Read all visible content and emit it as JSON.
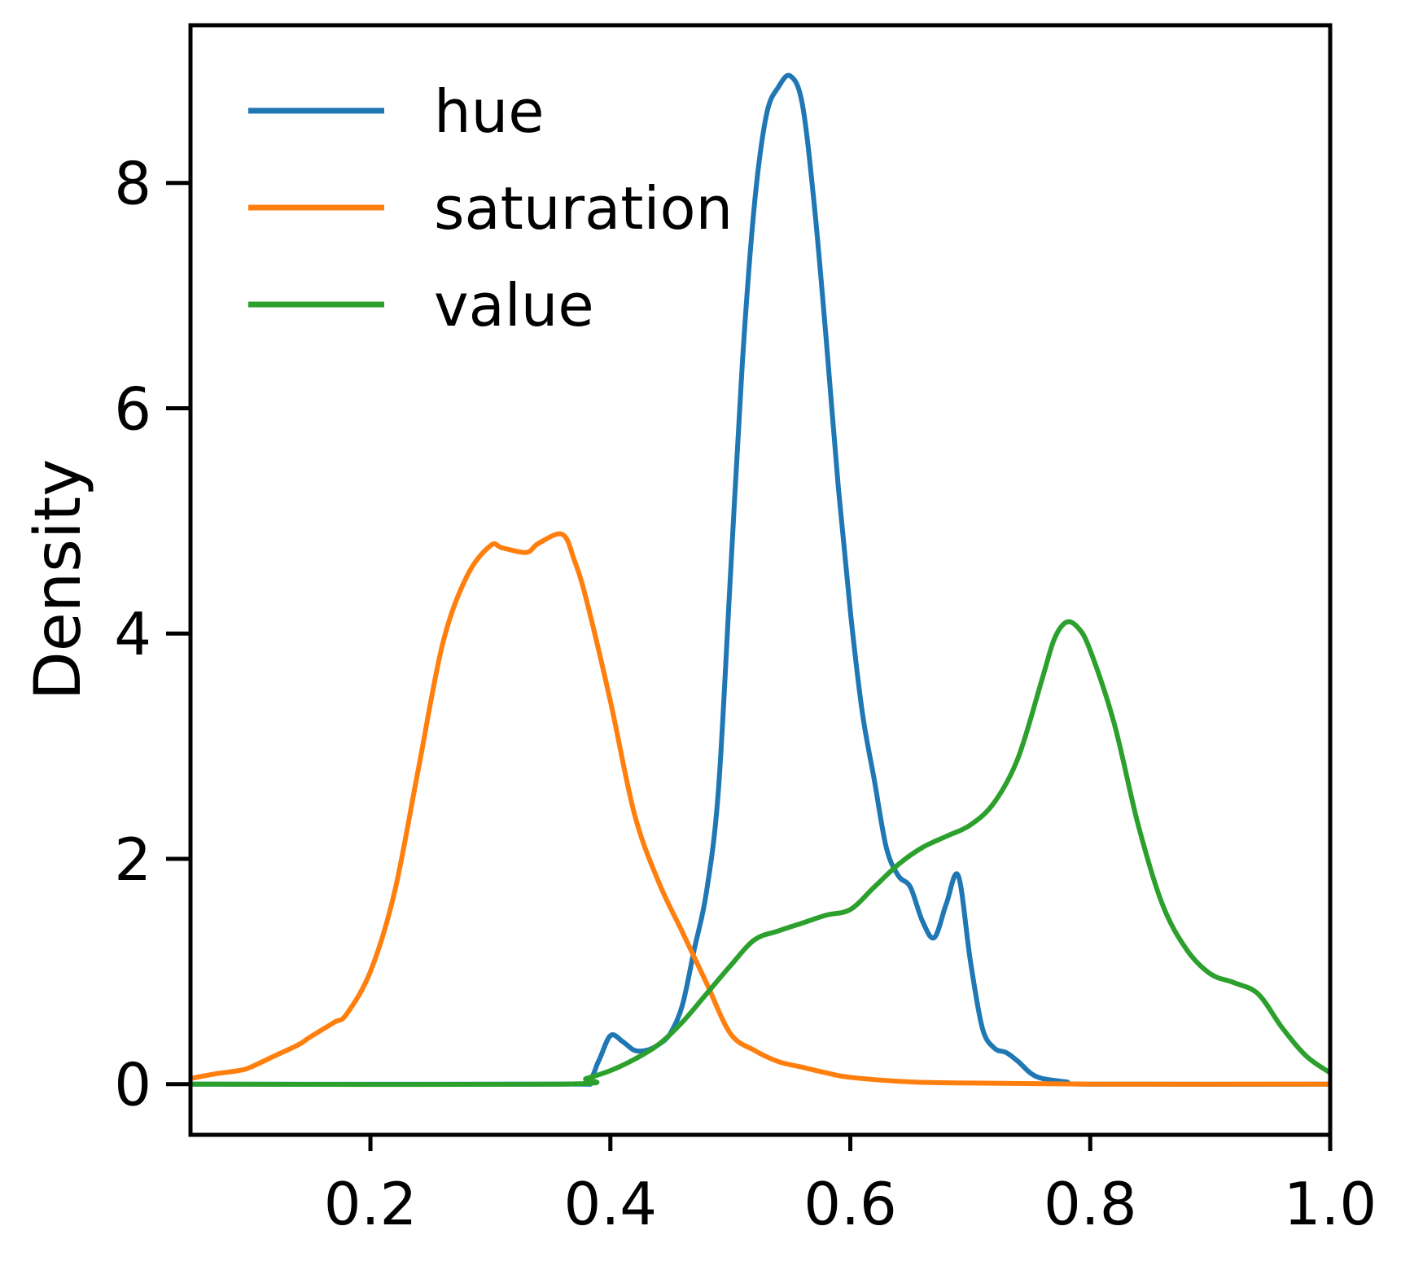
{
  "chart_data": {
    "type": "line",
    "title": "",
    "xlabel": "",
    "ylabel": "Density",
    "xlim": [
      0.05,
      1.0
    ],
    "ylim": [
      -0.45,
      9.4
    ],
    "xticks": [
      0.2,
      0.4,
      0.6,
      0.8,
      1.0
    ],
    "xtick_labels": [
      "0.2",
      "0.4",
      "0.6",
      "0.8",
      "1.0"
    ],
    "yticks": [
      0,
      2,
      4,
      6,
      8
    ],
    "ytick_labels": [
      "0",
      "2",
      "4",
      "6",
      "8"
    ],
    "grid": false,
    "legend_position": "top-left",
    "series": [
      {
        "name": "hue",
        "color": "#1f77b4",
        "points": [
          [
            0.05,
            0
          ],
          [
            0.35,
            0
          ],
          [
            0.38,
            0.02
          ],
          [
            0.39,
            0.2
          ],
          [
            0.4,
            0.43
          ],
          [
            0.41,
            0.38
          ],
          [
            0.42,
            0.3
          ],
          [
            0.43,
            0.3
          ],
          [
            0.44,
            0.35
          ],
          [
            0.45,
            0.45
          ],
          [
            0.46,
            0.7
          ],
          [
            0.47,
            1.2
          ],
          [
            0.48,
            1.7
          ],
          [
            0.49,
            2.6
          ],
          [
            0.5,
            4.5
          ],
          [
            0.51,
            6.4
          ],
          [
            0.52,
            7.8
          ],
          [
            0.53,
            8.6
          ],
          [
            0.54,
            8.85
          ],
          [
            0.55,
            8.95
          ],
          [
            0.56,
            8.7
          ],
          [
            0.57,
            7.8
          ],
          [
            0.58,
            6.6
          ],
          [
            0.59,
            5.3
          ],
          [
            0.6,
            4.2
          ],
          [
            0.61,
            3.3
          ],
          [
            0.62,
            2.7
          ],
          [
            0.63,
            2.1
          ],
          [
            0.64,
            1.85
          ],
          [
            0.65,
            1.75
          ],
          [
            0.66,
            1.45
          ],
          [
            0.67,
            1.3
          ],
          [
            0.68,
            1.6
          ],
          [
            0.69,
            1.85
          ],
          [
            0.7,
            1.1
          ],
          [
            0.71,
            0.5
          ],
          [
            0.72,
            0.32
          ],
          [
            0.73,
            0.28
          ],
          [
            0.74,
            0.2
          ],
          [
            0.75,
            0.1
          ],
          [
            0.76,
            0.05
          ],
          [
            0.78,
            0.02
          ],
          [
            0.8,
            0
          ],
          [
            1.0,
            0
          ]
        ]
      },
      {
        "name": "saturation",
        "color": "#ff7f0e",
        "points": [
          [
            0.05,
            0.05
          ],
          [
            0.07,
            0.09
          ],
          [
            0.09,
            0.12
          ],
          [
            0.1,
            0.15
          ],
          [
            0.12,
            0.25
          ],
          [
            0.14,
            0.35
          ],
          [
            0.15,
            0.42
          ],
          [
            0.17,
            0.55
          ],
          [
            0.18,
            0.62
          ],
          [
            0.2,
            1.0
          ],
          [
            0.22,
            1.7
          ],
          [
            0.24,
            2.8
          ],
          [
            0.26,
            3.9
          ],
          [
            0.28,
            4.5
          ],
          [
            0.3,
            4.78
          ],
          [
            0.31,
            4.76
          ],
          [
            0.33,
            4.72
          ],
          [
            0.34,
            4.8
          ],
          [
            0.36,
            4.88
          ],
          [
            0.37,
            4.65
          ],
          [
            0.38,
            4.3
          ],
          [
            0.4,
            3.4
          ],
          [
            0.42,
            2.4
          ],
          [
            0.44,
            1.8
          ],
          [
            0.46,
            1.35
          ],
          [
            0.48,
            0.9
          ],
          [
            0.5,
            0.45
          ],
          [
            0.52,
            0.3
          ],
          [
            0.54,
            0.2
          ],
          [
            0.56,
            0.15
          ],
          [
            0.58,
            0.1
          ],
          [
            0.6,
            0.06
          ],
          [
            0.65,
            0.02
          ],
          [
            0.7,
            0.01
          ],
          [
            0.8,
            0
          ],
          [
            1.0,
            0
          ]
        ]
      },
      {
        "name": "value",
        "color": "#2ca02c",
        "points": [
          [
            0.05,
            0
          ],
          [
            0.36,
            0
          ],
          [
            0.38,
            0.05
          ],
          [
            0.4,
            0.12
          ],
          [
            0.42,
            0.22
          ],
          [
            0.44,
            0.35
          ],
          [
            0.46,
            0.55
          ],
          [
            0.48,
            0.8
          ],
          [
            0.5,
            1.05
          ],
          [
            0.52,
            1.28
          ],
          [
            0.54,
            1.36
          ],
          [
            0.56,
            1.43
          ],
          [
            0.58,
            1.5
          ],
          [
            0.6,
            1.55
          ],
          [
            0.62,
            1.75
          ],
          [
            0.64,
            1.95
          ],
          [
            0.66,
            2.1
          ],
          [
            0.68,
            2.2
          ],
          [
            0.7,
            2.3
          ],
          [
            0.72,
            2.5
          ],
          [
            0.74,
            2.9
          ],
          [
            0.76,
            3.6
          ],
          [
            0.77,
            3.95
          ],
          [
            0.78,
            4.1
          ],
          [
            0.79,
            4.05
          ],
          [
            0.8,
            3.85
          ],
          [
            0.82,
            3.2
          ],
          [
            0.84,
            2.3
          ],
          [
            0.86,
            1.6
          ],
          [
            0.88,
            1.2
          ],
          [
            0.9,
            0.98
          ],
          [
            0.92,
            0.9
          ],
          [
            0.94,
            0.8
          ],
          [
            0.96,
            0.5
          ],
          [
            0.98,
            0.25
          ],
          [
            1.0,
            0.1
          ]
        ]
      }
    ]
  }
}
